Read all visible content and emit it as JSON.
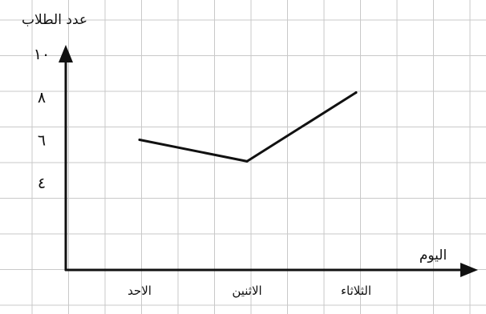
{
  "chart_data": {
    "type": "line",
    "ylabel": "عدد الطلاب",
    "xlabel": "اليوم",
    "categories": [
      "الاحد",
      "الاثنين",
      "الثلاثاء"
    ],
    "y_ticks": [
      {
        "value": 4,
        "label": "٤"
      },
      {
        "value": 6,
        "label": "٦"
      },
      {
        "value": 8,
        "label": "٨"
      },
      {
        "value": 10,
        "label": "١٠"
      }
    ],
    "series": [
      {
        "values": [
          6,
          5,
          8.2
        ]
      }
    ],
    "ylim": [
      -2.1,
      12.5
    ],
    "grid": true,
    "colors": {
      "line": "#111111",
      "grid": "#c9c9c9",
      "background": "#ffffff"
    }
  }
}
